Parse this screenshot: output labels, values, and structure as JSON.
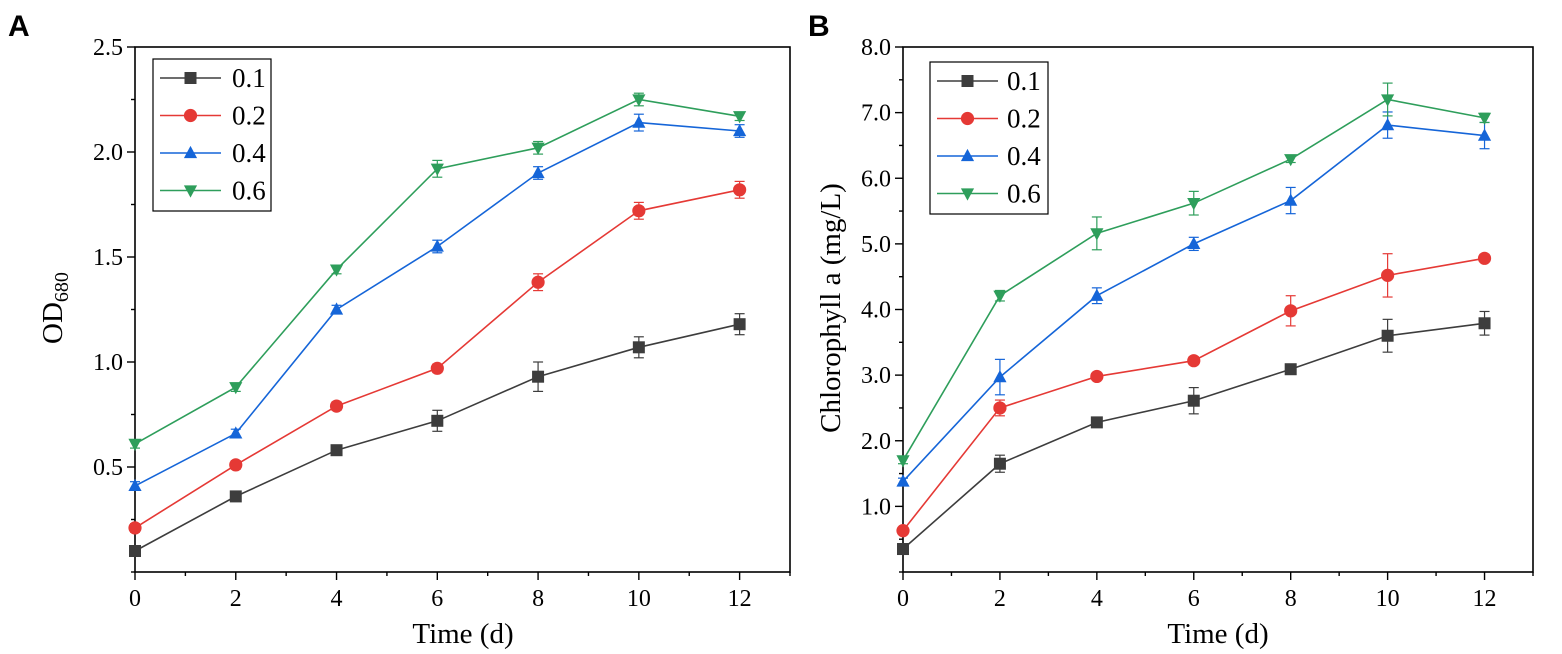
{
  "chart_data": [
    {
      "type": "line",
      "panel_letter": "A",
      "title": "",
      "xlabel": "Time (d)",
      "ylabel_main": "OD",
      "ylabel_sub": "680",
      "xlim": [
        0,
        13
      ],
      "ylim": [
        0,
        2.5
      ],
      "xticks": [
        0,
        2,
        4,
        6,
        8,
        10,
        12
      ],
      "xtick_labels": [
        "0",
        "2",
        "4",
        "6",
        "8",
        "10",
        "12"
      ],
      "yticks": [
        0.5,
        1.0,
        1.5,
        2.0,
        2.5
      ],
      "ytick_labels": [
        "0.5",
        "1.0",
        "1.5",
        "2.0",
        "2.5"
      ],
      "x": [
        0,
        2,
        4,
        6,
        8,
        10,
        12
      ],
      "legend_position": "top-left",
      "series": [
        {
          "name": "0.1",
          "color": "#3d3d3d",
          "marker": "square",
          "values": [
            0.1,
            0.36,
            0.58,
            0.72,
            0.93,
            1.07,
            1.18
          ],
          "errors": [
            0.02,
            0.02,
            0.02,
            0.05,
            0.07,
            0.05,
            0.05
          ]
        },
        {
          "name": "0.2",
          "color": "#e53935",
          "marker": "circle",
          "values": [
            0.21,
            0.51,
            0.79,
            0.97,
            1.38,
            1.72,
            1.82
          ],
          "errors": [
            0.02,
            0.02,
            0.02,
            0.02,
            0.04,
            0.04,
            0.04
          ]
        },
        {
          "name": "0.4",
          "color": "#1565d8",
          "marker": "triangle-up",
          "values": [
            0.41,
            0.66,
            1.25,
            1.55,
            1.9,
            2.14,
            2.1
          ],
          "errors": [
            0.02,
            0.02,
            0.02,
            0.03,
            0.03,
            0.04,
            0.03
          ]
        },
        {
          "name": "0.6",
          "color": "#2e9e5b",
          "marker": "triangle-down",
          "values": [
            0.61,
            0.88,
            1.44,
            1.92,
            2.02,
            2.25,
            2.17
          ],
          "errors": [
            0.02,
            0.02,
            0.02,
            0.04,
            0.03,
            0.03,
            0.02
          ]
        }
      ]
    },
    {
      "type": "line",
      "panel_letter": "B",
      "title": "",
      "xlabel": "Time (d)",
      "ylabel_main": "Chlorophyll a (mg/L)",
      "ylabel_sub": "",
      "xlim": [
        0,
        13
      ],
      "ylim": [
        0,
        8
      ],
      "xticks": [
        0,
        2,
        4,
        6,
        8,
        10,
        12
      ],
      "xtick_labels": [
        "0",
        "2",
        "4",
        "6",
        "8",
        "10",
        "12"
      ],
      "yticks": [
        1,
        2,
        3,
        4,
        5,
        6,
        7,
        8
      ],
      "ytick_labels": [
        "1.0",
        "2.0",
        "3.0",
        "4.0",
        "5.0",
        "6.0",
        "7.0",
        "8.0"
      ],
      "x": [
        0,
        2,
        4,
        6,
        8,
        10,
        12
      ],
      "legend_position": "top-left",
      "series": [
        {
          "name": "0.1",
          "color": "#3d3d3d",
          "marker": "square",
          "values": [
            0.35,
            1.65,
            2.28,
            2.61,
            3.09,
            3.6,
            3.79
          ],
          "errors": [
            0.08,
            0.13,
            0.05,
            0.2,
            0.05,
            0.25,
            0.18
          ]
        },
        {
          "name": "0.2",
          "color": "#e53935",
          "marker": "circle",
          "values": [
            0.63,
            2.5,
            2.98,
            3.22,
            3.98,
            4.52,
            4.78
          ],
          "errors": [
            0.05,
            0.12,
            0.05,
            0.06,
            0.23,
            0.33,
            0.05
          ]
        },
        {
          "name": "0.4",
          "color": "#1565d8",
          "marker": "triangle-up",
          "values": [
            1.38,
            2.97,
            4.21,
            5.0,
            5.66,
            6.81,
            6.65
          ],
          "errors": [
            0.05,
            0.27,
            0.12,
            0.1,
            0.2,
            0.2,
            0.2
          ]
        },
        {
          "name": "0.6",
          "color": "#2e9e5b",
          "marker": "triangle-down",
          "values": [
            1.7,
            4.21,
            5.16,
            5.62,
            6.29,
            7.2,
            6.92
          ],
          "errors": [
            0.05,
            0.08,
            0.25,
            0.18,
            0.05,
            0.25,
            0.07
          ]
        }
      ]
    }
  ]
}
